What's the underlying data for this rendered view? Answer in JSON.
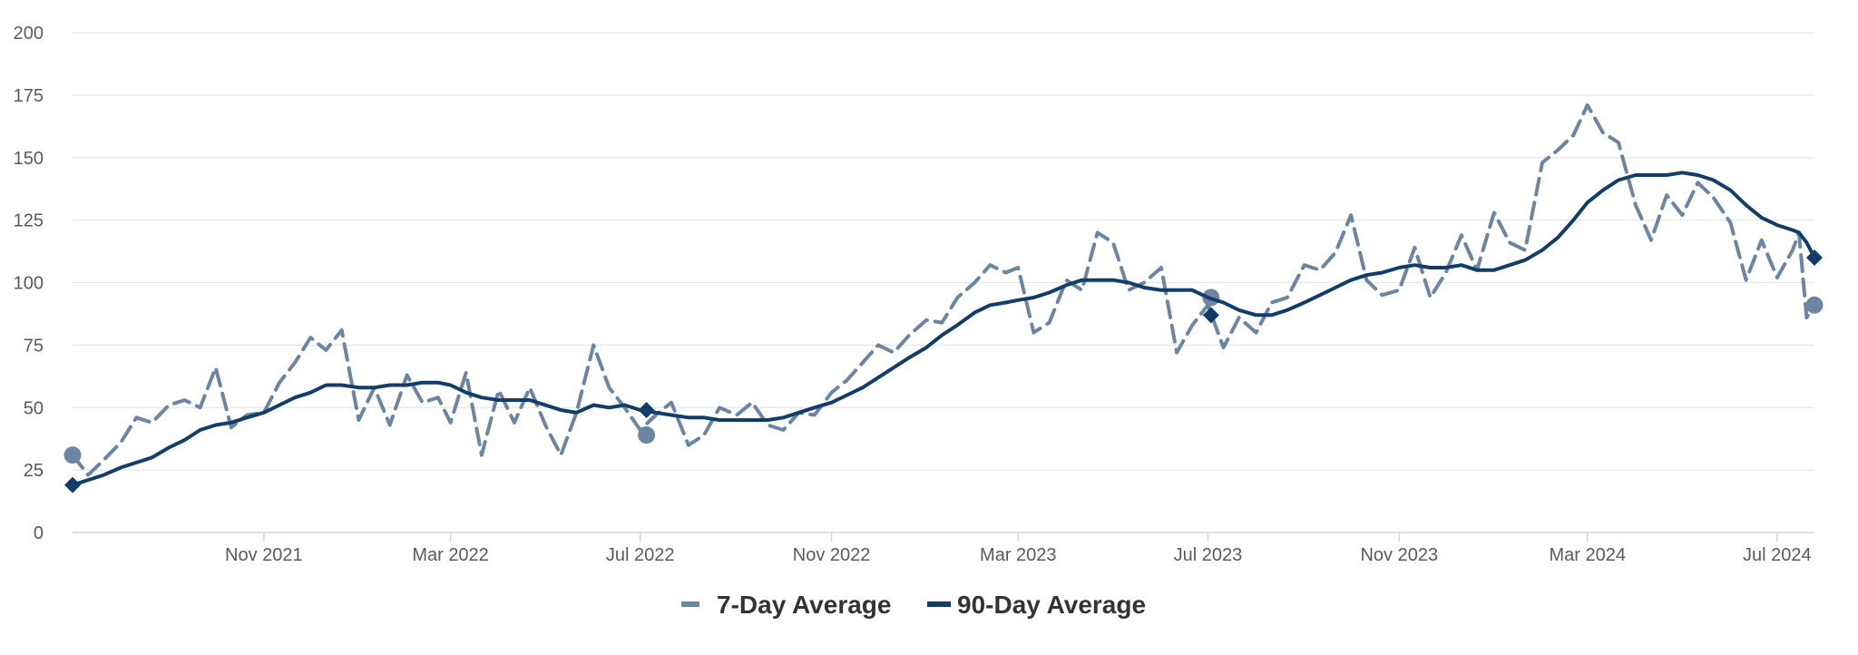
{
  "chart_data": {
    "type": "line",
    "title": "",
    "xlabel": "",
    "ylabel": "",
    "ylim": [
      0,
      200
    ],
    "yticks": [
      0,
      25,
      50,
      75,
      100,
      125,
      150,
      175,
      200
    ],
    "xlim": [
      "2021-07-01",
      "2024-07-25"
    ],
    "xticks": [
      {
        "date": "2021-11-01",
        "label": "Nov 2021"
      },
      {
        "date": "2022-03-01",
        "label": "Mar 2022"
      },
      {
        "date": "2022-07-01",
        "label": "Jul 2022"
      },
      {
        "date": "2022-11-01",
        "label": "Nov 2022"
      },
      {
        "date": "2023-03-01",
        "label": "Mar 2023"
      },
      {
        "date": "2023-07-01",
        "label": "Jul 2023"
      },
      {
        "date": "2023-11-01",
        "label": "Nov 2023"
      },
      {
        "date": "2024-03-01",
        "label": "Mar 2024"
      },
      {
        "date": "2024-07-01",
        "label": "Jul 2024"
      }
    ],
    "grid": true,
    "legend_position": "bottom-center",
    "series": [
      {
        "name": "7-Day Average",
        "color": "#6b85a3",
        "style": "dashed",
        "marker": "circle",
        "marked_points": [
          {
            "x": "2021-07-01",
            "y": 31
          },
          {
            "x": "2022-07-05",
            "y": 39
          },
          {
            "x": "2023-07-03",
            "y": 94
          },
          {
            "x": "2024-07-25",
            "y": 91
          }
        ],
        "points": [
          {
            "x": "2021-07-01",
            "y": 31
          },
          {
            "x": "2021-07-11",
            "y": 23
          },
          {
            "x": "2021-07-21",
            "y": 29
          },
          {
            "x": "2021-08-01",
            "y": 36
          },
          {
            "x": "2021-08-11",
            "y": 46
          },
          {
            "x": "2021-08-21",
            "y": 44
          },
          {
            "x": "2021-09-01",
            "y": 51
          },
          {
            "x": "2021-09-11",
            "y": 53
          },
          {
            "x": "2021-09-21",
            "y": 50
          },
          {
            "x": "2021-10-01",
            "y": 66
          },
          {
            "x": "2021-10-11",
            "y": 42
          },
          {
            "x": "2021-10-21",
            "y": 47
          },
          {
            "x": "2021-11-01",
            "y": 48
          },
          {
            "x": "2021-11-11",
            "y": 60
          },
          {
            "x": "2021-11-21",
            "y": 68
          },
          {
            "x": "2021-12-01",
            "y": 78
          },
          {
            "x": "2021-12-11",
            "y": 73
          },
          {
            "x": "2021-12-21",
            "y": 81
          },
          {
            "x": "2022-01-01",
            "y": 45
          },
          {
            "x": "2022-01-11",
            "y": 58
          },
          {
            "x": "2022-01-21",
            "y": 43
          },
          {
            "x": "2022-02-01",
            "y": 63
          },
          {
            "x": "2022-02-11",
            "y": 52
          },
          {
            "x": "2022-02-21",
            "y": 54
          },
          {
            "x": "2022-03-01",
            "y": 44
          },
          {
            "x": "2022-03-11",
            "y": 64
          },
          {
            "x": "2022-03-21",
            "y": 31
          },
          {
            "x": "2022-04-01",
            "y": 57
          },
          {
            "x": "2022-04-11",
            "y": 44
          },
          {
            "x": "2022-04-21",
            "y": 58
          },
          {
            "x": "2022-05-01",
            "y": 43
          },
          {
            "x": "2022-05-11",
            "y": 31
          },
          {
            "x": "2022-05-21",
            "y": 48
          },
          {
            "x": "2022-06-01",
            "y": 75
          },
          {
            "x": "2022-06-11",
            "y": 58
          },
          {
            "x": "2022-06-21",
            "y": 50
          },
          {
            "x": "2022-07-01",
            "y": 41
          },
          {
            "x": "2022-07-11",
            "y": 47
          },
          {
            "x": "2022-07-21",
            "y": 52
          },
          {
            "x": "2022-08-01",
            "y": 35
          },
          {
            "x": "2022-08-11",
            "y": 39
          },
          {
            "x": "2022-08-21",
            "y": 50
          },
          {
            "x": "2022-09-01",
            "y": 47
          },
          {
            "x": "2022-09-11",
            "y": 52
          },
          {
            "x": "2022-09-21",
            "y": 43
          },
          {
            "x": "2022-10-01",
            "y": 41
          },
          {
            "x": "2022-10-11",
            "y": 48
          },
          {
            "x": "2022-10-21",
            "y": 47
          },
          {
            "x": "2022-11-01",
            "y": 56
          },
          {
            "x": "2022-11-11",
            "y": 61
          },
          {
            "x": "2022-11-21",
            "y": 68
          },
          {
            "x": "2022-12-01",
            "y": 75
          },
          {
            "x": "2022-12-11",
            "y": 72
          },
          {
            "x": "2022-12-21",
            "y": 79
          },
          {
            "x": "2023-01-01",
            "y": 85
          },
          {
            "x": "2023-01-11",
            "y": 84
          },
          {
            "x": "2023-01-21",
            "y": 94
          },
          {
            "x": "2023-02-01",
            "y": 100
          },
          {
            "x": "2023-02-11",
            "y": 107
          },
          {
            "x": "2023-02-21",
            "y": 104
          },
          {
            "x": "2023-03-01",
            "y": 106
          },
          {
            "x": "2023-03-11",
            "y": 80
          },
          {
            "x": "2023-03-21",
            "y": 84
          },
          {
            "x": "2023-04-01",
            "y": 101
          },
          {
            "x": "2023-04-11",
            "y": 97
          },
          {
            "x": "2023-04-21",
            "y": 120
          },
          {
            "x": "2023-05-01",
            "y": 116
          },
          {
            "x": "2023-05-11",
            "y": 97
          },
          {
            "x": "2023-05-21",
            "y": 100
          },
          {
            "x": "2023-06-01",
            "y": 106
          },
          {
            "x": "2023-06-11",
            "y": 72
          },
          {
            "x": "2023-06-21",
            "y": 83
          },
          {
            "x": "2023-07-01",
            "y": 91
          },
          {
            "x": "2023-07-11",
            "y": 74
          },
          {
            "x": "2023-07-21",
            "y": 86
          },
          {
            "x": "2023-08-01",
            "y": 80
          },
          {
            "x": "2023-08-11",
            "y": 92
          },
          {
            "x": "2023-08-21",
            "y": 94
          },
          {
            "x": "2023-09-01",
            "y": 107
          },
          {
            "x": "2023-09-11",
            "y": 105
          },
          {
            "x": "2023-09-21",
            "y": 112
          },
          {
            "x": "2023-10-01",
            "y": 127
          },
          {
            "x": "2023-10-11",
            "y": 101
          },
          {
            "x": "2023-10-21",
            "y": 95
          },
          {
            "x": "2023-11-01",
            "y": 97
          },
          {
            "x": "2023-11-11",
            "y": 114
          },
          {
            "x": "2023-11-21",
            "y": 94
          },
          {
            "x": "2023-12-01",
            "y": 104
          },
          {
            "x": "2023-12-11",
            "y": 119
          },
          {
            "x": "2023-12-21",
            "y": 105
          },
          {
            "x": "2024-01-01",
            "y": 128
          },
          {
            "x": "2024-01-11",
            "y": 116
          },
          {
            "x": "2024-01-21",
            "y": 113
          },
          {
            "x": "2024-02-01",
            "y": 148
          },
          {
            "x": "2024-02-11",
            "y": 153
          },
          {
            "x": "2024-02-21",
            "y": 159
          },
          {
            "x": "2024-03-01",
            "y": 171
          },
          {
            "x": "2024-03-11",
            "y": 160
          },
          {
            "x": "2024-03-21",
            "y": 156
          },
          {
            "x": "2024-04-01",
            "y": 131
          },
          {
            "x": "2024-04-11",
            "y": 117
          },
          {
            "x": "2024-04-21",
            "y": 135
          },
          {
            "x": "2024-05-01",
            "y": 127
          },
          {
            "x": "2024-05-11",
            "y": 140
          },
          {
            "x": "2024-05-21",
            "y": 134
          },
          {
            "x": "2024-06-01",
            "y": 124
          },
          {
            "x": "2024-06-11",
            "y": 101
          },
          {
            "x": "2024-06-21",
            "y": 117
          },
          {
            "x": "2024-07-01",
            "y": 102
          },
          {
            "x": "2024-07-11",
            "y": 113
          },
          {
            "x": "2024-07-15",
            "y": 120
          },
          {
            "x": "2024-07-20",
            "y": 86
          },
          {
            "x": "2024-07-25",
            "y": 91
          }
        ]
      },
      {
        "name": "90-Day Average",
        "color": "#123d6a",
        "style": "solid",
        "marker": "diamond",
        "marked_points": [
          {
            "x": "2021-07-01",
            "y": 19
          },
          {
            "x": "2022-07-05",
            "y": 49
          },
          {
            "x": "2023-07-03",
            "y": 87
          },
          {
            "x": "2024-07-25",
            "y": 110
          }
        ],
        "points": [
          {
            "x": "2021-07-01",
            "y": 19
          },
          {
            "x": "2021-07-11",
            "y": 21
          },
          {
            "x": "2021-07-21",
            "y": 23
          },
          {
            "x": "2021-08-01",
            "y": 26
          },
          {
            "x": "2021-08-11",
            "y": 28
          },
          {
            "x": "2021-08-21",
            "y": 30
          },
          {
            "x": "2021-09-01",
            "y": 34
          },
          {
            "x": "2021-09-11",
            "y": 37
          },
          {
            "x": "2021-09-21",
            "y": 41
          },
          {
            "x": "2021-10-01",
            "y": 43
          },
          {
            "x": "2021-10-11",
            "y": 44
          },
          {
            "x": "2021-10-21",
            "y": 46
          },
          {
            "x": "2021-11-01",
            "y": 48
          },
          {
            "x": "2021-11-11",
            "y": 51
          },
          {
            "x": "2021-11-21",
            "y": 54
          },
          {
            "x": "2021-12-01",
            "y": 56
          },
          {
            "x": "2021-12-11",
            "y": 59
          },
          {
            "x": "2021-12-21",
            "y": 59
          },
          {
            "x": "2022-01-01",
            "y": 58
          },
          {
            "x": "2022-01-11",
            "y": 58
          },
          {
            "x": "2022-01-21",
            "y": 59
          },
          {
            "x": "2022-02-01",
            "y": 59
          },
          {
            "x": "2022-02-11",
            "y": 60
          },
          {
            "x": "2022-02-21",
            "y": 60
          },
          {
            "x": "2022-03-01",
            "y": 59
          },
          {
            "x": "2022-03-11",
            "y": 56
          },
          {
            "x": "2022-03-21",
            "y": 54
          },
          {
            "x": "2022-04-01",
            "y": 53
          },
          {
            "x": "2022-04-11",
            "y": 53
          },
          {
            "x": "2022-04-21",
            "y": 53
          },
          {
            "x": "2022-05-01",
            "y": 51
          },
          {
            "x": "2022-05-11",
            "y": 49
          },
          {
            "x": "2022-05-21",
            "y": 48
          },
          {
            "x": "2022-06-01",
            "y": 51
          },
          {
            "x": "2022-06-11",
            "y": 50
          },
          {
            "x": "2022-06-21",
            "y": 51
          },
          {
            "x": "2022-07-01",
            "y": 49
          },
          {
            "x": "2022-07-11",
            "y": 48
          },
          {
            "x": "2022-07-21",
            "y": 47
          },
          {
            "x": "2022-08-01",
            "y": 46
          },
          {
            "x": "2022-08-11",
            "y": 46
          },
          {
            "x": "2022-08-21",
            "y": 45
          },
          {
            "x": "2022-09-01",
            "y": 45
          },
          {
            "x": "2022-09-11",
            "y": 45
          },
          {
            "x": "2022-09-21",
            "y": 45
          },
          {
            "x": "2022-10-01",
            "y": 46
          },
          {
            "x": "2022-10-11",
            "y": 48
          },
          {
            "x": "2022-10-21",
            "y": 50
          },
          {
            "x": "2022-11-01",
            "y": 52
          },
          {
            "x": "2022-11-11",
            "y": 55
          },
          {
            "x": "2022-11-21",
            "y": 58
          },
          {
            "x": "2022-12-01",
            "y": 62
          },
          {
            "x": "2022-12-11",
            "y": 66
          },
          {
            "x": "2022-12-21",
            "y": 70
          },
          {
            "x": "2023-01-01",
            "y": 74
          },
          {
            "x": "2023-01-11",
            "y": 79
          },
          {
            "x": "2023-01-21",
            "y": 83
          },
          {
            "x": "2023-02-01",
            "y": 88
          },
          {
            "x": "2023-02-11",
            "y": 91
          },
          {
            "x": "2023-02-21",
            "y": 92
          },
          {
            "x": "2023-03-01",
            "y": 93
          },
          {
            "x": "2023-03-11",
            "y": 94
          },
          {
            "x": "2023-03-21",
            "y": 96
          },
          {
            "x": "2023-04-01",
            "y": 99
          },
          {
            "x": "2023-04-11",
            "y": 101
          },
          {
            "x": "2023-04-21",
            "y": 101
          },
          {
            "x": "2023-05-01",
            "y": 101
          },
          {
            "x": "2023-05-11",
            "y": 100
          },
          {
            "x": "2023-05-21",
            "y": 98
          },
          {
            "x": "2023-06-01",
            "y": 97
          },
          {
            "x": "2023-06-11",
            "y": 97
          },
          {
            "x": "2023-06-21",
            "y": 97
          },
          {
            "x": "2023-07-01",
            "y": 94
          },
          {
            "x": "2023-07-11",
            "y": 92
          },
          {
            "x": "2023-07-21",
            "y": 89
          },
          {
            "x": "2023-08-01",
            "y": 87
          },
          {
            "x": "2023-08-11",
            "y": 87
          },
          {
            "x": "2023-08-21",
            "y": 89
          },
          {
            "x": "2023-09-01",
            "y": 92
          },
          {
            "x": "2023-09-11",
            "y": 95
          },
          {
            "x": "2023-09-21",
            "y": 98
          },
          {
            "x": "2023-10-01",
            "y": 101
          },
          {
            "x": "2023-10-11",
            "y": 103
          },
          {
            "x": "2023-10-21",
            "y": 104
          },
          {
            "x": "2023-11-01",
            "y": 106
          },
          {
            "x": "2023-11-11",
            "y": 107
          },
          {
            "x": "2023-11-21",
            "y": 106
          },
          {
            "x": "2023-12-01",
            "y": 106
          },
          {
            "x": "2023-12-11",
            "y": 107
          },
          {
            "x": "2023-12-21",
            "y": 105
          },
          {
            "x": "2024-01-01",
            "y": 105
          },
          {
            "x": "2024-01-11",
            "y": 107
          },
          {
            "x": "2024-01-21",
            "y": 109
          },
          {
            "x": "2024-02-01",
            "y": 113
          },
          {
            "x": "2024-02-11",
            "y": 118
          },
          {
            "x": "2024-02-21",
            "y": 125
          },
          {
            "x": "2024-03-01",
            "y": 132
          },
          {
            "x": "2024-03-11",
            "y": 137
          },
          {
            "x": "2024-03-21",
            "y": 141
          },
          {
            "x": "2024-04-01",
            "y": 143
          },
          {
            "x": "2024-04-11",
            "y": 143
          },
          {
            "x": "2024-04-21",
            "y": 143
          },
          {
            "x": "2024-05-01",
            "y": 144
          },
          {
            "x": "2024-05-11",
            "y": 143
          },
          {
            "x": "2024-05-21",
            "y": 141
          },
          {
            "x": "2024-06-01",
            "y": 137
          },
          {
            "x": "2024-06-11",
            "y": 131
          },
          {
            "x": "2024-06-21",
            "y": 126
          },
          {
            "x": "2024-07-01",
            "y": 123
          },
          {
            "x": "2024-07-11",
            "y": 121
          },
          {
            "x": "2024-07-15",
            "y": 120
          },
          {
            "x": "2024-07-20",
            "y": 116
          },
          {
            "x": "2024-07-25",
            "y": 110
          }
        ]
      }
    ]
  },
  "legend": {
    "items": [
      {
        "label": "7-Day Average"
      },
      {
        "label": "90-Day Average"
      }
    ]
  }
}
